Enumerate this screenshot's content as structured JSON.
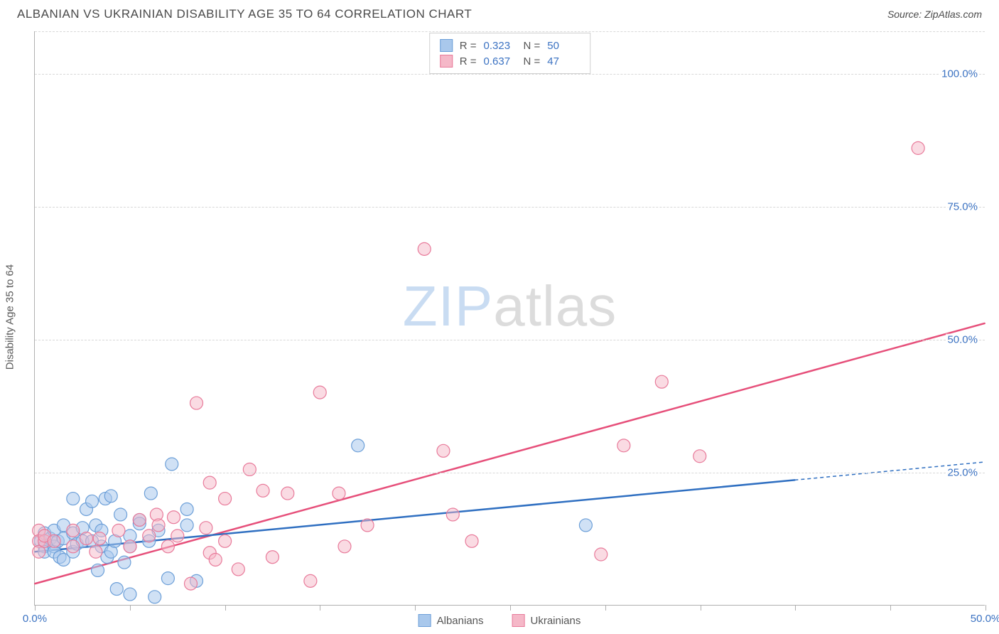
{
  "header": {
    "title": "ALBANIAN VS UKRAINIAN DISABILITY AGE 35 TO 64 CORRELATION CHART",
    "source_prefix": "Source: ",
    "source_name": "ZipAtlas.com"
  },
  "chart": {
    "type": "scatter",
    "ylabel": "Disability Age 35 to 64",
    "xlim": [
      0,
      50
    ],
    "ylim": [
      0,
      108
    ],
    "x_ticks": [
      0,
      5,
      10,
      15,
      20,
      25,
      30,
      35,
      40,
      45,
      50
    ],
    "x_tick_labels": {
      "0": "0.0%",
      "50": "50.0%"
    },
    "y_gridlines": [
      25,
      50,
      75,
      100
    ],
    "y_tick_labels": {
      "25": "25.0%",
      "50": "50.0%",
      "75": "75.0%",
      "100": "100.0%"
    },
    "grid_color": "#d8d8d8",
    "axis_color": "#b0b0b0",
    "tick_label_color": "#3b72c2",
    "background_color": "#ffffff",
    "marker_radius": 9,
    "marker_stroke_width": 1.2,
    "trend_line_width": 2.5,
    "trend_dash": "5,4",
    "watermark": {
      "zip": "ZIP",
      "atlas": "atlas"
    },
    "series": [
      {
        "name": "Albanians",
        "fill": "#a9c8ec",
        "stroke": "#6c9fd8",
        "fill_opacity": 0.55,
        "trend_color": "#2f6fc1",
        "trend": {
          "x1": 0,
          "y1": 10,
          "x2": 40,
          "y2": 23.5,
          "extend_x2": 50,
          "extend_y2": 26.9
        },
        "points": [
          [
            0.3,
            12
          ],
          [
            0.5,
            11
          ],
          [
            0.5,
            13.5
          ],
          [
            0.5,
            10
          ],
          [
            0.8,
            12.5
          ],
          [
            1,
            11
          ],
          [
            1,
            10
          ],
          [
            1,
            14
          ],
          [
            1.2,
            12
          ],
          [
            1.3,
            9
          ],
          [
            1.5,
            12.5
          ],
          [
            1.5,
            15
          ],
          [
            1.5,
            8.5
          ],
          [
            2,
            20
          ],
          [
            2,
            13.5
          ],
          [
            2,
            10
          ],
          [
            2.2,
            11.5
          ],
          [
            2.5,
            12
          ],
          [
            2.5,
            14.5
          ],
          [
            2.7,
            18
          ],
          [
            3,
            12
          ],
          [
            3,
            19.5
          ],
          [
            3.2,
            15
          ],
          [
            3.3,
            6.5
          ],
          [
            3.5,
            11
          ],
          [
            3.5,
            14
          ],
          [
            3.7,
            20
          ],
          [
            3.8,
            9
          ],
          [
            4,
            10
          ],
          [
            4,
            20.5
          ],
          [
            4.2,
            12
          ],
          [
            4.3,
            3
          ],
          [
            4.5,
            17
          ],
          [
            4.7,
            8
          ],
          [
            5,
            13
          ],
          [
            5,
            11
          ],
          [
            5,
            2
          ],
          [
            5.5,
            16
          ],
          [
            5.5,
            15.3
          ],
          [
            6,
            12
          ],
          [
            6.1,
            21
          ],
          [
            6.3,
            1.5
          ],
          [
            6.5,
            14
          ],
          [
            7,
            5
          ],
          [
            7.2,
            26.5
          ],
          [
            8,
            15
          ],
          [
            8,
            18
          ],
          [
            8.5,
            4.5
          ],
          [
            17,
            30
          ],
          [
            29,
            15
          ]
        ]
      },
      {
        "name": "Ukrainians",
        "fill": "#f5b8c8",
        "stroke": "#e87a9a",
        "fill_opacity": 0.5,
        "trend_color": "#e64f7a",
        "trend": {
          "x1": 0,
          "y1": 4,
          "x2": 50,
          "y2": 53
        },
        "points": [
          [
            0.2,
            14
          ],
          [
            0.2,
            12
          ],
          [
            0.2,
            10
          ],
          [
            0.5,
            12
          ],
          [
            0.5,
            13
          ],
          [
            1,
            12
          ],
          [
            2,
            11
          ],
          [
            2,
            14
          ],
          [
            2.7,
            12.5
          ],
          [
            3.2,
            10
          ],
          [
            3.4,
            12.5
          ],
          [
            4.4,
            14
          ],
          [
            5,
            11
          ],
          [
            5.5,
            16
          ],
          [
            6,
            13
          ],
          [
            6.4,
            17
          ],
          [
            6.5,
            15
          ],
          [
            7,
            11
          ],
          [
            7.3,
            16.5
          ],
          [
            7.5,
            13
          ],
          [
            8.2,
            4
          ],
          [
            8.5,
            38
          ],
          [
            9,
            14.5
          ],
          [
            9.2,
            23
          ],
          [
            9.2,
            9.8
          ],
          [
            9.5,
            8.5
          ],
          [
            10,
            12
          ],
          [
            10,
            20
          ],
          [
            10.7,
            6.7
          ],
          [
            11.3,
            25.5
          ],
          [
            12,
            21.5
          ],
          [
            12.5,
            9
          ],
          [
            13.3,
            21
          ],
          [
            14.5,
            4.5
          ],
          [
            15,
            40
          ],
          [
            16,
            21
          ],
          [
            16.3,
            11
          ],
          [
            17.5,
            15
          ],
          [
            20.5,
            67
          ],
          [
            21.5,
            29
          ],
          [
            22,
            17
          ],
          [
            23,
            12
          ],
          [
            29.8,
            9.5
          ],
          [
            31,
            30
          ],
          [
            33,
            42
          ],
          [
            35,
            28
          ],
          [
            46.5,
            86
          ]
        ]
      }
    ],
    "legend_top": [
      {
        "swatch_fill": "#a9c8ec",
        "swatch_stroke": "#6c9fd8",
        "r_label": "R =",
        "r_value": "0.323",
        "n_label": "N =",
        "n_value": "50"
      },
      {
        "swatch_fill": "#f5b8c8",
        "swatch_stroke": "#e87a9a",
        "r_label": "R =",
        "r_value": "0.637",
        "n_label": "N =",
        "n_value": "47"
      }
    ],
    "legend_bottom": [
      {
        "swatch_fill": "#a9c8ec",
        "swatch_stroke": "#6c9fd8",
        "label": "Albanians"
      },
      {
        "swatch_fill": "#f5b8c8",
        "swatch_stroke": "#e87a9a",
        "label": "Ukrainians"
      }
    ]
  }
}
